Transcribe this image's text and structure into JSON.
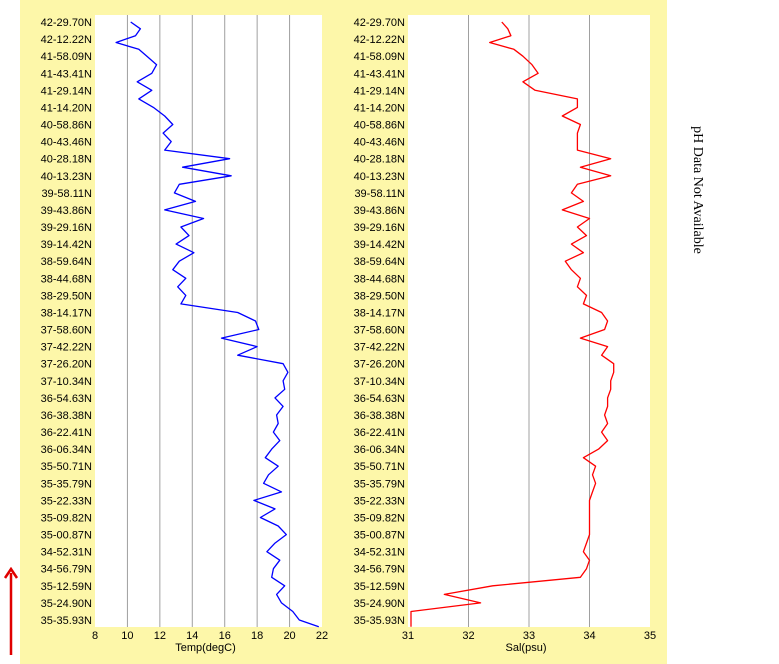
{
  "latitudes": [
    "42-29.70N",
    "42-12.22N",
    "41-58.09N",
    "41-43.41N",
    "41-29.14N",
    "41-14.20N",
    "40-58.86N",
    "40-43.46N",
    "40-28.18N",
    "40-13.23N",
    "39-58.11N",
    "39-43.86N",
    "39-29.16N",
    "39-14.42N",
    "38-59.64N",
    "38-44.68N",
    "38-29.50N",
    "38-14.17N",
    "37-58.60N",
    "37-42.22N",
    "37-26.20N",
    "37-10.34N",
    "36-54.63N",
    "36-38.38N",
    "36-22.41N",
    "36-06.34N",
    "35-50.71N",
    "35-35.79N",
    "35-22.33N",
    "35-09.82N",
    "35-00.87N",
    "34-52.31N",
    "34-56.79N",
    "35-12.59N",
    "35-24.90N",
    "35-35.93N"
  ],
  "ph_note": "pH Data Not Available",
  "colors": {
    "panel": "#fdf7a9",
    "temp": "#0000ff",
    "sal": "#ff0000",
    "arrow": "#e00000"
  },
  "direction_arrow": "arrow-up-icon",
  "chart_data": [
    {
      "type": "line",
      "xlabel": "Temp(degC)",
      "xlim": [
        8,
        22
      ],
      "xticks": [
        8,
        10,
        12,
        14,
        16,
        18,
        20,
        22
      ],
      "grid": true,
      "series": [
        {
          "color": "#0000ff",
          "depth": [
            0,
            0.4,
            0.8,
            1.2,
            1.6,
            2,
            2.5,
            3,
            3.5,
            4,
            4.5,
            5,
            5.5,
            6,
            6.5,
            7,
            7.5,
            8,
            8.5,
            9,
            9.5,
            10,
            10.5,
            11,
            11.5,
            12,
            12.5,
            13,
            13.5,
            14,
            14.5,
            15,
            15.5,
            16,
            16.5,
            17,
            17.5,
            18,
            18.5,
            19,
            19.5,
            20,
            20.5,
            21,
            21.5,
            22,
            22.5,
            23,
            23.5,
            24,
            24.5,
            25,
            25.5,
            26,
            26.5,
            27,
            27.5,
            28,
            28.5,
            29,
            29.5,
            30,
            30.5,
            31,
            31.5,
            32,
            32.5,
            33,
            33.5,
            34,
            34.5,
            35,
            35.4
          ],
          "x": [
            10.2,
            10.8,
            10.5,
            9.3,
            10.7,
            11.2,
            11.8,
            11.5,
            10.6,
            11.5,
            10.7,
            11.6,
            12.3,
            12.8,
            12.2,
            12.7,
            12.3,
            16.3,
            13.4,
            16.4,
            13.2,
            12.9,
            14.2,
            12.3,
            14.7,
            13.3,
            13.8,
            13.0,
            14.1,
            13.2,
            12.8,
            13.6,
            13.1,
            13.6,
            13.3,
            16.8,
            17.9,
            18.1,
            15.8,
            18.0,
            16.8,
            19.6,
            19.9,
            19.6,
            19.7,
            19.1,
            19.6,
            19.2,
            19.3,
            19.0,
            19.4,
            18.9,
            18.5,
            19.3,
            18.7,
            18.4,
            19.5,
            17.8,
            19.1,
            18.2,
            19.3,
            19.8,
            19.1,
            18.6,
            19.4,
            19.0,
            18.9,
            19.7,
            19.2,
            19.5,
            20.2,
            20.6,
            21.8
          ]
        }
      ]
    },
    {
      "type": "line",
      "xlabel": "Sal(psu)",
      "xlim": [
        31,
        35
      ],
      "xticks": [
        31,
        32,
        33,
        34,
        35
      ],
      "grid": true,
      "series": [
        {
          "color": "#ff0000",
          "depth": [
            0,
            0.4,
            0.8,
            1.2,
            1.6,
            2,
            2.5,
            3,
            3.5,
            4,
            4.5,
            5,
            5.5,
            6,
            6.5,
            7,
            7.5,
            8,
            8.5,
            9,
            9.5,
            10,
            10.5,
            11,
            11.5,
            12,
            12.5,
            13,
            13.5,
            14,
            14.5,
            15,
            15.5,
            16,
            16.5,
            17,
            17.5,
            18,
            18.5,
            19,
            19.5,
            20,
            20.5,
            21,
            21.5,
            22,
            22.5,
            23,
            23.5,
            24,
            24.5,
            25,
            25.5,
            26,
            26.5,
            27,
            27.5,
            28,
            28.5,
            29,
            29.5,
            30,
            30.5,
            31,
            31.5,
            32,
            32.5,
            33,
            33.5,
            34,
            34.5,
            35,
            35.4
          ],
          "x": [
            32.55,
            32.65,
            32.7,
            32.35,
            32.75,
            32.9,
            33.05,
            33.15,
            32.9,
            33.1,
            33.8,
            33.8,
            33.55,
            33.85,
            33.8,
            33.8,
            33.8,
            34.35,
            33.85,
            34.35,
            33.8,
            33.7,
            33.9,
            33.55,
            34.0,
            33.8,
            33.95,
            33.7,
            33.9,
            33.6,
            33.7,
            33.85,
            33.8,
            33.95,
            33.9,
            34.2,
            34.3,
            34.25,
            33.85,
            34.3,
            34.2,
            34.4,
            34.4,
            34.35,
            34.35,
            34.3,
            34.3,
            34.25,
            34.3,
            34.2,
            34.3,
            34.15,
            33.9,
            34.1,
            34.05,
            34.1,
            34.05,
            34.0,
            34.0,
            34.0,
            34.0,
            34.0,
            33.95,
            33.9,
            34.0,
            33.95,
            33.85,
            32.4,
            31.6,
            32.2,
            31.05,
            31.05,
            31.05
          ]
        }
      ]
    }
  ]
}
